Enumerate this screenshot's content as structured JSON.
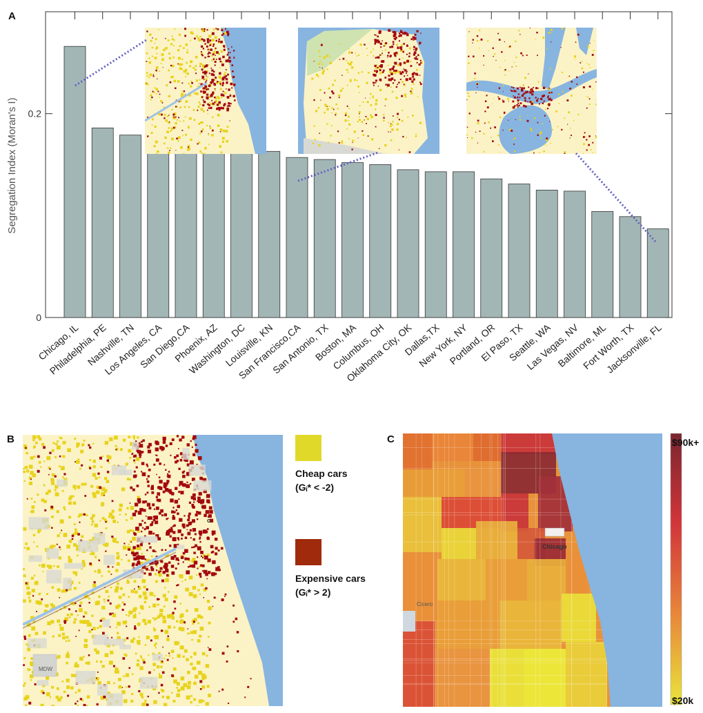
{
  "panels": {
    "a": "A",
    "b": "B",
    "c": "C"
  },
  "chart_data": {
    "type": "bar",
    "ylabel": "Segregation Index (Moran's I)",
    "ylim": [
      0,
      0.3
    ],
    "yticks": [
      "0",
      "0.2"
    ],
    "ytick_values": [
      0,
      0.2
    ],
    "categories": [
      "Chicago, IL",
      "Philadelphia, PE",
      "Nashville, TN",
      "Los Angeles, CA",
      "San Diego,CA",
      "Phoenix, AZ",
      "Washington, DC",
      "Louisville, KN",
      "San Francisco,CA",
      "San Antonio, TX",
      "Boston, MA",
      "Columbus, OH",
      "Oklahoma City, OK",
      "Dallas,TX",
      "New York, NY",
      "Portland, OR",
      "El Paso, TX",
      "Seattle, WA",
      "Las Vegas, NV",
      "Baltimore, ML",
      "Fort Worth, TX",
      "Jacksonville, FL"
    ],
    "values": [
      0.266,
      0.186,
      0.179,
      0.175,
      0.173,
      0.167,
      0.164,
      0.163,
      0.157,
      0.155,
      0.152,
      0.15,
      0.145,
      0.143,
      0.143,
      0.136,
      0.131,
      0.125,
      0.124,
      0.104,
      0.099,
      0.087
    ],
    "grid": false,
    "bar_color": "#a3b6b6",
    "connector_color": "#6060c0",
    "insets": [
      {
        "city": "Chicago, IL"
      },
      {
        "city": "San Francisco,CA"
      },
      {
        "city": "Jacksonville, FL"
      }
    ]
  },
  "legend_b": {
    "cheap_title": "Cheap cars",
    "cheap_sub": "(Gᵢ* < -2)",
    "cheap_color": "#e0d92a",
    "expensive_title": "Expensive cars",
    "expensive_sub": "(Gᵢ* > 2)",
    "expensive_color": "#a02a0c"
  },
  "map_b": {
    "city_label": "o",
    "airport_label": "MDW",
    "land_color": "#fbf3c6",
    "water_color": "#88b4e0",
    "hot_color": "#a3090f",
    "cold_color": "#e7d31c"
  },
  "map_c": {
    "city_label": "Chicago",
    "cicero_label": "Cicero",
    "water_color": "#88b4e0"
  },
  "colorbar_c": {
    "max_label": "$90k+",
    "min_label": "$20k",
    "colors": [
      "#7a2630",
      "#d2343a",
      "#e8853a",
      "#e9e53a"
    ]
  }
}
